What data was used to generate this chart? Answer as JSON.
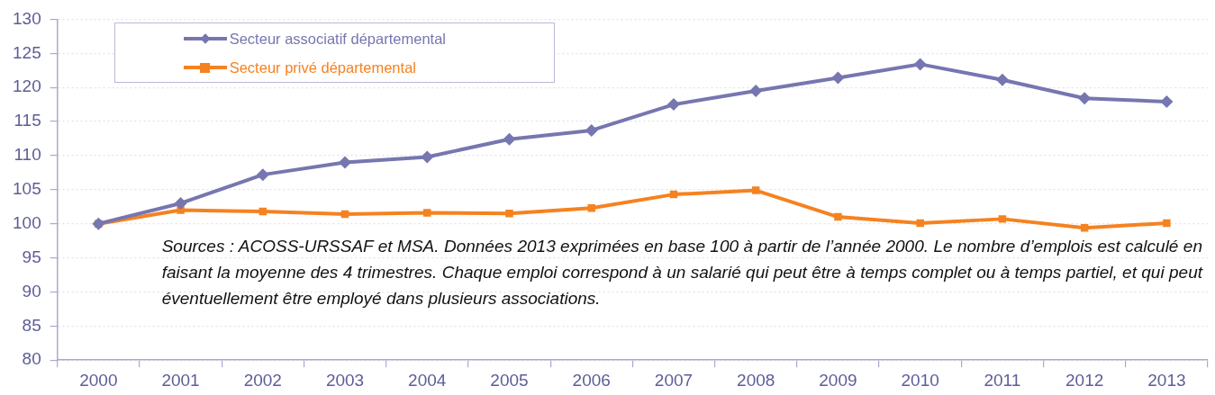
{
  "chart_data": {
    "type": "line",
    "categories": [
      "2000",
      "2001",
      "2002",
      "2003",
      "2004",
      "2005",
      "2006",
      "2007",
      "2008",
      "2009",
      "2010",
      "2011",
      "2012",
      "2013"
    ],
    "series": [
      {
        "name": "Secteur associatif départemental",
        "color": "#7676b0",
        "marker": "diamond",
        "values": [
          100,
          103.0,
          107.2,
          109.0,
          109.8,
          112.4,
          113.7,
          117.5,
          119.5,
          121.4,
          123.4,
          121.1,
          118.4,
          117.9
        ]
      },
      {
        "name": "Secteur privé départemental",
        "color": "#f58220",
        "marker": "square",
        "values": [
          100,
          102.0,
          101.8,
          101.4,
          101.6,
          101.5,
          102.3,
          104.3,
          104.9,
          101.0,
          100.1,
          100.7,
          99.4,
          100.1
        ]
      }
    ],
    "ylim": [
      80,
      130
    ],
    "yticks": [
      80,
      85,
      90,
      95,
      100,
      105,
      110,
      115,
      120,
      125,
      130
    ],
    "grid": "y",
    "legend": "top left",
    "annotations": [
      "Sources : ACOSS-URSSAF et MSA. Données 2013 exprimées en base 100 à partir de l’année 2000. Le nombre d’emplois est calculé en faisant la moyenne des 4 trimestres. Chaque emploi correspond à un salarié qui peut être à temps complet ou à temps partiel, et qui peut éventuellement être employé dans plusieurs associations."
    ]
  }
}
